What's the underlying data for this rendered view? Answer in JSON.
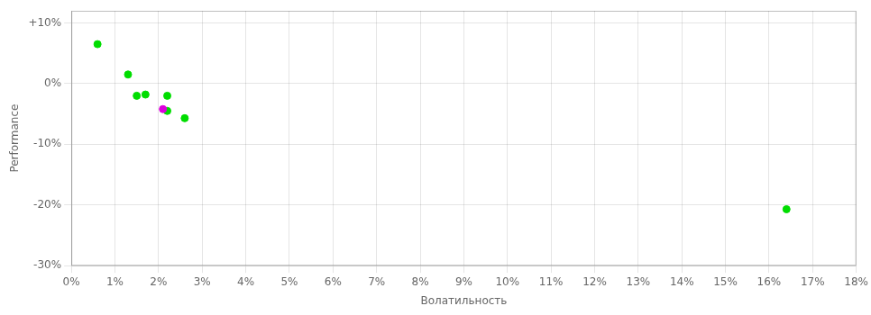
{
  "chart_data": {
    "type": "scatter",
    "xlabel": "Волатильность",
    "ylabel": "Performance",
    "xlim": [
      0,
      0.18
    ],
    "ylim": [
      -0.3,
      0.12
    ],
    "xticks": [
      {
        "value": 0.0,
        "label": "0%"
      },
      {
        "value": 0.01,
        "label": "1%"
      },
      {
        "value": 0.02,
        "label": "2%"
      },
      {
        "value": 0.03,
        "label": "3%"
      },
      {
        "value": 0.04,
        "label": "4%"
      },
      {
        "value": 0.05,
        "label": "5%"
      },
      {
        "value": 0.06,
        "label": "6%"
      },
      {
        "value": 0.07,
        "label": "7%"
      },
      {
        "value": 0.08,
        "label": "8%"
      },
      {
        "value": 0.09,
        "label": "9%"
      },
      {
        "value": 0.1,
        "label": "10%"
      },
      {
        "value": 0.11,
        "label": "11%"
      },
      {
        "value": 0.12,
        "label": "12%"
      },
      {
        "value": 0.13,
        "label": "13%"
      },
      {
        "value": 0.14,
        "label": "14%"
      },
      {
        "value": 0.15,
        "label": "15%"
      },
      {
        "value": 0.16,
        "label": "16%"
      },
      {
        "value": 0.17,
        "label": "17%"
      },
      {
        "value": 0.18,
        "label": "18%"
      }
    ],
    "yticks": [
      {
        "value": -0.3,
        "label": "-30%"
      },
      {
        "value": -0.2,
        "label": "-20%"
      },
      {
        "value": -0.1,
        "label": "-10%"
      },
      {
        "value": 0.0,
        "label": "0%"
      },
      {
        "value": 0.1,
        "label": "+10%"
      }
    ],
    "grid": true,
    "series": [
      {
        "color": "#00dd00",
        "x": [
          0.006,
          0.013,
          0.015,
          0.017,
          0.022,
          0.022,
          0.026,
          0.164
        ],
        "values": [
          0.065,
          0.015,
          -0.02,
          -0.018,
          -0.02,
          -0.045,
          -0.057,
          -0.207
        ]
      },
      {
        "color": "#dd00dd",
        "x": [
          0.021
        ],
        "values": [
          -0.042
        ]
      }
    ]
  }
}
